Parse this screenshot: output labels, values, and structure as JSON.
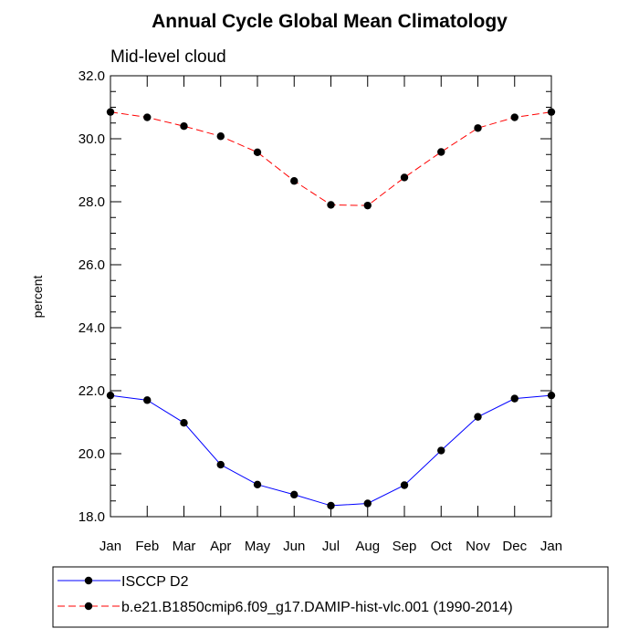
{
  "chart_data": {
    "type": "line",
    "title": "Annual Cycle Global Mean Climatology",
    "subtitle": "Mid-level cloud",
    "xlabel": "",
    "ylabel": "percent",
    "categories": [
      "Jan",
      "Feb",
      "Mar",
      "Apr",
      "May",
      "Jun",
      "Jul",
      "Aug",
      "Sep",
      "Oct",
      "Nov",
      "Dec",
      "Jan"
    ],
    "ylim": [
      18.0,
      32.0
    ],
    "yticks": [
      "18.0",
      "20.0",
      "22.0",
      "24.0",
      "26.0",
      "28.0",
      "30.0",
      "32.0"
    ],
    "grid": false,
    "legend_placement": "bottom",
    "series": [
      {
        "name": "ISCCP D2",
        "color": "#0000ff",
        "line_style": "solid",
        "marker": "filled-circle",
        "values": [
          21.85,
          21.7,
          20.98,
          19.65,
          19.02,
          18.7,
          18.35,
          18.42,
          19.0,
          20.1,
          21.17,
          21.75,
          21.85
        ]
      },
      {
        "name": "b.e21.B1850cmip6.f09_g17.DAMIP-hist-vlc.001 (1990-2014)",
        "color": "#ff0000",
        "line_style": "dashed",
        "marker": "filled-circle",
        "values": [
          30.85,
          30.68,
          30.4,
          30.08,
          29.57,
          28.66,
          27.9,
          27.88,
          28.77,
          29.58,
          30.34,
          30.68,
          30.85
        ]
      }
    ]
  }
}
